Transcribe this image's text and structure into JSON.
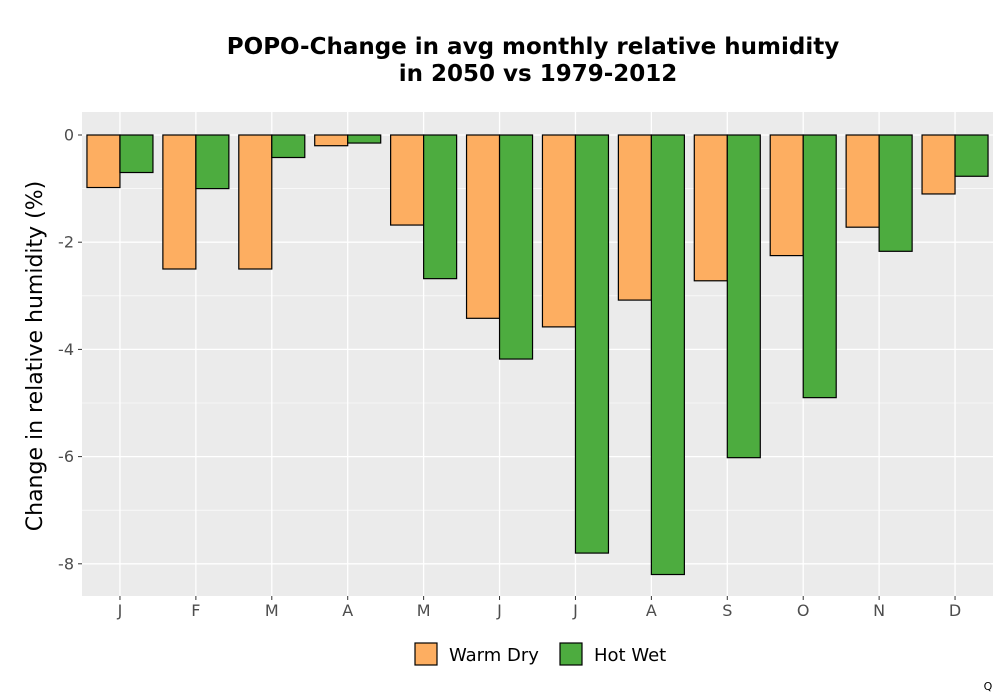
{
  "chart_data": {
    "type": "bar",
    "title": "POPO-Change in avg monthly relative humidity",
    "subtitle": "in 2050 vs 1979-2012",
    "xlabel": "",
    "ylabel": "Change in relative humidity (%)",
    "categories": [
      "J",
      "F",
      "M",
      "A",
      "M",
      "J",
      "J",
      "A",
      "S",
      "O",
      "N",
      "D"
    ],
    "series": [
      {
        "name": "Warm Dry",
        "color": "#FDAE61",
        "values": [
          -0.98,
          -2.5,
          -2.5,
          -0.2,
          -1.68,
          -3.42,
          -3.58,
          -3.08,
          -2.72,
          -2.25,
          -1.72,
          -1.1
        ]
      },
      {
        "name": "Hot Wet",
        "color": "#4DAC3F",
        "values": [
          -0.7,
          -1.0,
          -0.42,
          -0.15,
          -2.68,
          -4.18,
          -7.8,
          -8.2,
          -6.02,
          -4.9,
          -2.17,
          -0.77
        ]
      }
    ],
    "ylim": [
      -8.6,
      0.5
    ],
    "yticks": [
      0,
      -2,
      -4,
      -6,
      -8
    ],
    "ytick_labels": [
      "0",
      "-2",
      "-4",
      "-6",
      "-8"
    ],
    "grid": true,
    "panel_background": "#EBEBEB",
    "grid_color": "#FFFFFF",
    "legend_position": "bottom",
    "corner_mark": "Q"
  }
}
